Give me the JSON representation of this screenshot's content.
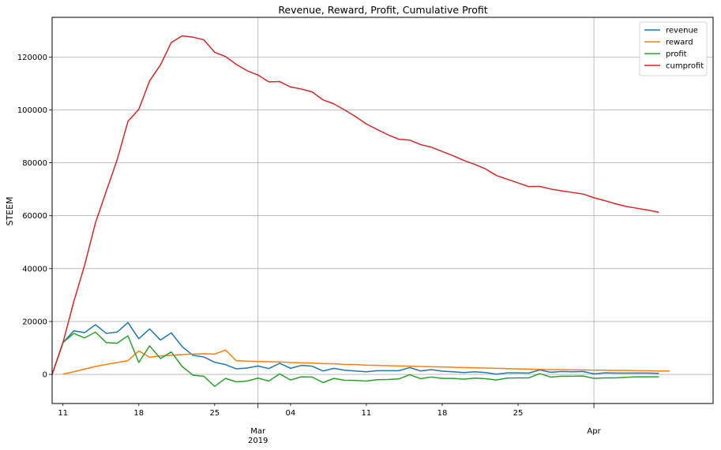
{
  "chart_data": {
    "type": "line",
    "title": "Revenue, Reward, Profit, Cumulative Profit",
    "xlabel": "",
    "ylabel": "STEEM",
    "x_start": "2019-02-10",
    "xlim": [
      "2019-02-10",
      "2019-04-12"
    ],
    "ylim": [
      -11000,
      135000
    ],
    "yticks": [
      0,
      20000,
      40000,
      60000,
      80000,
      100000,
      120000
    ],
    "xticks_minor": [
      {
        "date": "2019-02-11",
        "label": "11"
      },
      {
        "date": "2019-02-18",
        "label": "18"
      },
      {
        "date": "2019-02-25",
        "label": "25"
      },
      {
        "date": "2019-03-04",
        "label": "04"
      },
      {
        "date": "2019-03-11",
        "label": "11"
      },
      {
        "date": "2019-03-18",
        "label": "18"
      },
      {
        "date": "2019-03-25",
        "label": "25"
      }
    ],
    "xticks_major": [
      {
        "date": "2019-03-01",
        "label": "Mar",
        "sublabel": "2019"
      },
      {
        "date": "2019-04-01",
        "label": "Apr",
        "sublabel": ""
      }
    ],
    "grid": true,
    "legend_position": "top-right",
    "series": [
      {
        "name": "revenue",
        "color": "#1f77b4",
        "start": "2019-02-10",
        "values": [
          0,
          12000,
          16500,
          15800,
          18800,
          15500,
          16000,
          19600,
          13500,
          17200,
          13000,
          15700,
          10500,
          7200,
          6600,
          4600,
          3700,
          2100,
          2400,
          3200,
          2200,
          4200,
          2300,
          3400,
          3100,
          1300,
          2300,
          1600,
          1300,
          1000,
          1400,
          1400,
          1400,
          2600,
          1300,
          1800,
          1200,
          1000,
          700,
          1000,
          700,
          100,
          600,
          600,
          500,
          1700,
          800,
          1100,
          1000,
          1100,
          200,
          600,
          500,
          500,
          500,
          500,
          400
        ]
      },
      {
        "name": "reward",
        "color": "#ff7f0e",
        "start": "2019-02-11",
        "values": [
          100,
          1000,
          2000,
          3000,
          3800,
          4500,
          5200,
          8900,
          6500,
          7000,
          7200,
          7500,
          7700,
          7800,
          7700,
          9200,
          5200,
          5000,
          4900,
          4800,
          4700,
          4500,
          4400,
          4300,
          4100,
          4000,
          3800,
          3700,
          3500,
          3400,
          3300,
          3200,
          3100,
          3000,
          2900,
          2800,
          2700,
          2600,
          2500,
          2400,
          2300,
          2200,
          2100,
          2000,
          1900,
          1800,
          1800,
          1700,
          1700,
          1600,
          1600,
          1500,
          1500,
          1400,
          1400,
          1300,
          1300
        ]
      },
      {
        "name": "profit",
        "color": "#2ca02c",
        "start": "2019-02-10",
        "values": [
          0,
          12000,
          15500,
          13800,
          16000,
          12000,
          11800,
          14600,
          4500,
          10800,
          6000,
          8500,
          3000,
          -300,
          -700,
          -4500,
          -1500,
          -2800,
          -2500,
          -1400,
          -2500,
          200,
          -2100,
          -900,
          -1000,
          -3100,
          -1500,
          -2200,
          -2300,
          -2500,
          -2000,
          -1900,
          -1700,
          -100,
          -1600,
          -1000,
          -1500,
          -1500,
          -1800,
          -1400,
          -1600,
          -2100,
          -1400,
          -1300,
          -1300,
          300,
          -1000,
          -700,
          -700,
          -600,
          -1500,
          -1300,
          -1300,
          -1100,
          -900,
          -900,
          -900
        ]
      },
      {
        "name": "cumprofit",
        "color": "#d62728",
        "start": "2019-02-10",
        "values": [
          0,
          12000,
          27500,
          41300,
          57300,
          69300,
          81100,
          95700,
          100200,
          111000,
          117000,
          125500,
          128000,
          127500,
          126500,
          121800,
          120200,
          117200,
          114800,
          113200,
          110600,
          110700,
          108700,
          107900,
          106800,
          103800,
          102300,
          100000,
          97500,
          94700,
          92600,
          90600,
          88900,
          88600,
          86900,
          85900,
          84300,
          82700,
          80900,
          79400,
          77700,
          75200,
          73800,
          72400,
          71000,
          71100,
          70100,
          69400,
          68800,
          68200,
          66800,
          65700,
          64500,
          63500,
          62800,
          62100,
          61300
        ]
      }
    ]
  }
}
